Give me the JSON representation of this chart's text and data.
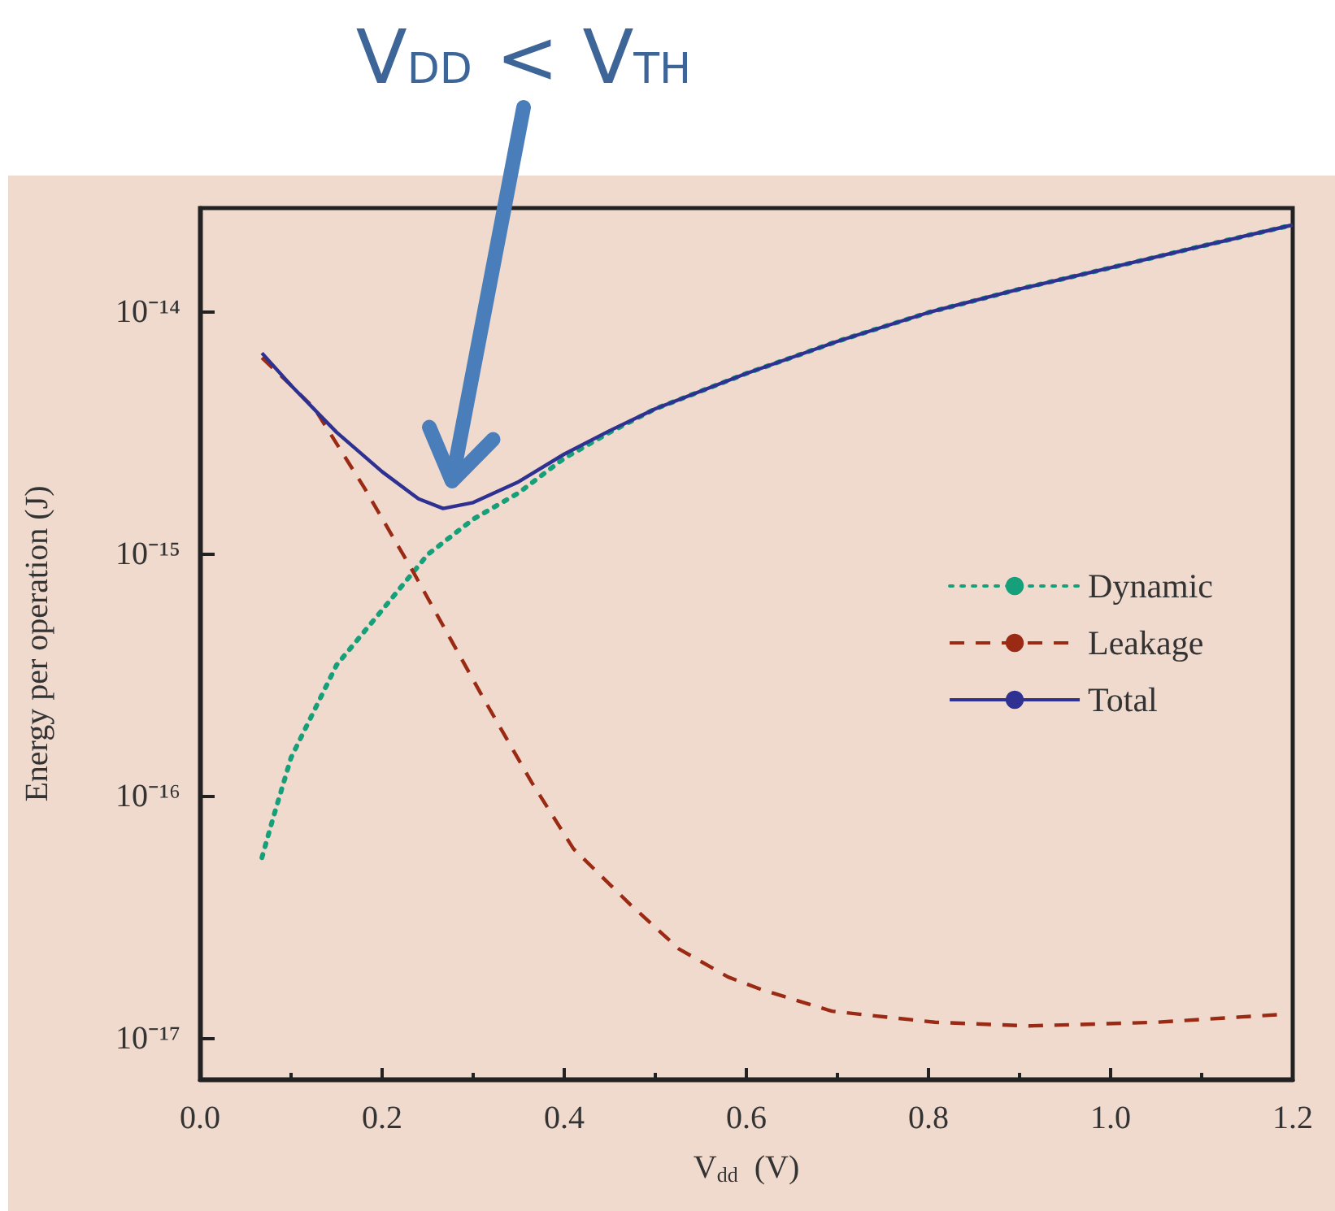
{
  "chart_data": {
    "type": "line",
    "xlabel": "V$_{dd}$  (V)",
    "ylabel": "Energy per operation (J)",
    "annotations": [
      "V$_{DD}$ < V$_{TH}$"
    ],
    "xlim": [
      0,
      1.2
    ],
    "xticks": [
      {
        "value": 0,
        "label": "0.0"
      },
      0.2,
      0.4,
      0.6,
      0.8,
      {
        "value": 1,
        "label": "1.0"
      },
      1.2
    ],
    "ylim": [
      6.8e-18,
      2.7e-14
    ],
    "yticks": [
      {
        "value": 1e-17,
        "label": "10⁻¹⁷"
      },
      {
        "value": 1e-16,
        "label": "10⁻¹⁶"
      },
      {
        "value": 1e-15,
        "label": "10⁻¹⁵"
      },
      {
        "value": 1e-14,
        "label": "10⁻¹⁴"
      }
    ],
    "log": "y",
    "grid": false,
    "legend": "right",
    "marker": "none",
    "series": [
      {
        "name": "Dynamic",
        "color": "#16a07a",
        "line_style": "dotted",
        "x": [
          0.068,
          0.08,
          0.1,
          0.15,
          0.2,
          0.25,
          0.3,
          0.35,
          0.4,
          0.45,
          0.5,
          0.6,
          0.7,
          0.8,
          0.9,
          1.0,
          1.1,
          1.2
        ],
        "values": [
          5.6e-17,
          8.1e-17,
          1.45e-16,
          3.5e-16,
          5.9e-16,
          1e-15,
          1.4e-15,
          1.8e-15,
          2.5e-15,
          3.2e-15,
          4e-15,
          5.6e-15,
          7.6e-15,
          1e-14,
          1.25e-14,
          1.53e-14,
          1.88e-14,
          2.3e-14
        ]
      },
      {
        "name": "Leakage",
        "color": "#9b2a14",
        "line_style": "dashed",
        "x": [
          0.068,
          0.1,
          0.126,
          0.18,
          0.234,
          0.31,
          0.364,
          0.41,
          0.472,
          0.526,
          0.58,
          0.616,
          0.694,
          0.807,
          0.91,
          1.05,
          1.186
        ],
        "values": [
          6.5e-15,
          5e-15,
          4e-15,
          1.9e-15,
          8.5e-16,
          2.6e-16,
          1.15e-16,
          6.1e-17,
          3.6e-17,
          2.35e-17,
          1.8e-17,
          1.6e-17,
          1.3e-17,
          1.17e-17,
          1.13e-17,
          1.17e-17,
          1.26e-17
        ]
      },
      {
        "name": "Total",
        "color": "#2e3192",
        "line_style": "solid",
        "x": [
          0.068,
          0.1,
          0.15,
          0.2,
          0.24,
          0.267,
          0.3,
          0.35,
          0.4,
          0.45,
          0.5,
          0.6,
          0.7,
          0.8,
          0.9,
          1.0,
          1.1,
          1.2
        ],
        "values": [
          6.8e-15,
          5e-15,
          3.2e-15,
          2.2e-15,
          1.7e-15,
          1.55e-15,
          1.64e-15,
          2e-15,
          2.6e-15,
          3.25e-15,
          4e-15,
          5.6e-15,
          7.6e-15,
          1e-14,
          1.25e-14,
          1.53e-14,
          1.88e-14,
          2.3e-14
        ]
      }
    ]
  }
}
